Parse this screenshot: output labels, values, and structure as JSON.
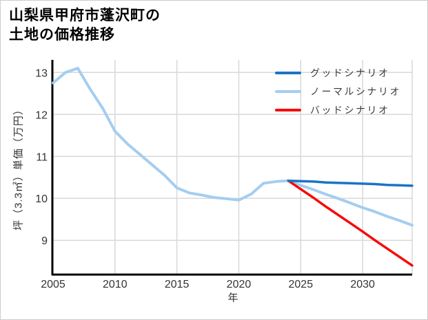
{
  "header": {
    "title_lines": [
      "山梨県甲府市蓬沢町の",
      "土地の価格推移"
    ]
  },
  "chart_data": {
    "type": "line",
    "title": "山梨県甲府市蓬沢町の土地の価格推移",
    "xlabel": "年",
    "ylabel": "坪（3.3㎡）単価（万円）",
    "xlim": [
      2005,
      2034
    ],
    "ylim": [
      8.2,
      13.3
    ],
    "x_ticks": [
      2005,
      2010,
      2015,
      2020,
      2025,
      2030
    ],
    "y_ticks": [
      9,
      10,
      11,
      12,
      13
    ],
    "grid": true,
    "legend_position": "top-right",
    "colors": {
      "grid": "#d8d8d8",
      "axis": "#000000",
      "tick_text": "#333333",
      "figure_border": "#cccccc",
      "background": "#ffffff"
    },
    "series": [
      {
        "name": "グッドシナリオ",
        "color": "#1a73c8",
        "width": 3.5,
        "x": [
          2024,
          2025,
          2026,
          2027,
          2028,
          2029,
          2030,
          2031,
          2032,
          2033,
          2034
        ],
        "values": [
          10.42,
          10.41,
          10.4,
          10.38,
          10.37,
          10.36,
          10.35,
          10.34,
          10.32,
          10.31,
          10.3
        ]
      },
      {
        "name": "ノーマルシナリオ",
        "color": "#a5cdf0",
        "width": 4,
        "x": [
          2005,
          2006,
          2007,
          2008,
          2009,
          2010,
          2011,
          2012,
          2013,
          2014,
          2015,
          2016,
          2017,
          2018,
          2019,
          2020,
          2021,
          2022,
          2023,
          2024,
          2025,
          2026,
          2027,
          2028,
          2029,
          2030,
          2031,
          2032,
          2033,
          2034
        ],
        "values": [
          12.75,
          13.0,
          13.1,
          12.6,
          12.15,
          11.6,
          11.3,
          11.05,
          10.8,
          10.55,
          10.25,
          10.13,
          10.08,
          10.02,
          9.99,
          9.96,
          10.1,
          10.36,
          10.4,
          10.42,
          10.31,
          10.21,
          10.1,
          10.0,
          9.89,
          9.78,
          9.68,
          9.57,
          9.47,
          9.36
        ]
      },
      {
        "name": "バッドシナリオ",
        "color": "#f80808",
        "width": 3.5,
        "x": [
          2024,
          2025,
          2026,
          2027,
          2028,
          2029,
          2030,
          2031,
          2032,
          2033,
          2034
        ],
        "values": [
          10.42,
          10.22,
          10.02,
          9.81,
          9.61,
          9.41,
          9.21,
          9.0,
          8.8,
          8.6,
          8.4
        ]
      }
    ]
  }
}
